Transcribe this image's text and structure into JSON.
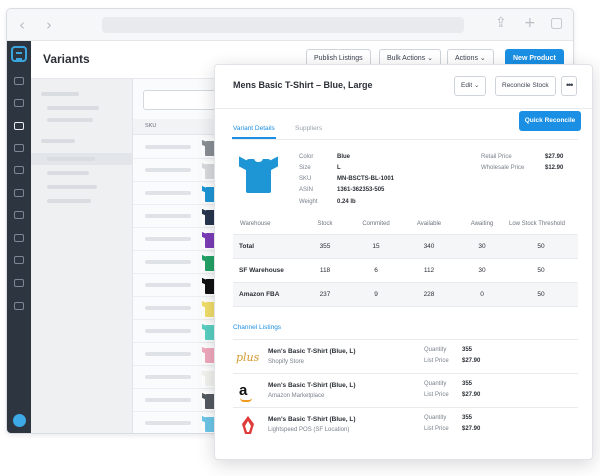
{
  "browser": {
    "back_icon": "chevron-left-icon",
    "forward_icon": "chevron-right-icon",
    "share_icon": "share-icon",
    "new_tab_icon": "plus-icon",
    "tabs_icon": "tabs-icon"
  },
  "colors": {
    "sidebar": "#2d3540",
    "accent": "#1a8fe3",
    "shirt_colors": [
      "#8a8f96",
      "#d8dadd",
      "#1e96d6",
      "#27364f",
      "#7c3db8",
      "#23a367",
      "#111111",
      "#f1de6b",
      "#58d0c2",
      "#f0a9bd",
      "#f2f2ee",
      "#545a61",
      "#6dc6e8"
    ]
  },
  "header": {
    "title": "Variants",
    "publish_listings": "Publish Listings",
    "bulk_actions": "Bulk Actions",
    "actions": "Actions",
    "new_product": "New Product"
  },
  "list": {
    "column_sku": "SKU"
  },
  "detail": {
    "title": "Mens Basic T-Shirt – Blue, Large",
    "edit": "Edit",
    "reconcile_stock": "Reconcile Stock",
    "more": "•••",
    "quick_reconcile": "Quick Reconcile",
    "tabs": [
      "Variant Details",
      "Suppliers"
    ],
    "attributes": [
      {
        "label": "Color",
        "value": "Blue"
      },
      {
        "label": "Size",
        "value": "L"
      },
      {
        "label": "SKU",
        "value": "MN-BSCTS-BL-1001"
      },
      {
        "label": "ASIN",
        "value": "1361-362353-505"
      },
      {
        "label": "Weight",
        "value": "0.24 lb"
      }
    ],
    "prices": [
      {
        "label": "Retail Price",
        "value": "$27.90"
      },
      {
        "label": "Wholesale Price",
        "value": "$12.90"
      }
    ],
    "stock_headers": [
      "Warehouse",
      "Stock",
      "Commited",
      "Available",
      "Awaiting",
      "Low Stock Threshold"
    ],
    "stock_rows": [
      {
        "warehouse": "Total",
        "stock": "355",
        "commited": "15",
        "available": "340",
        "awaiting": "30",
        "threshold": "50"
      },
      {
        "warehouse": "SF Warehouse",
        "stock": "118",
        "commited": "6",
        "available": "112",
        "awaiting": "30",
        "threshold": "50"
      },
      {
        "warehouse": "Amazon FBA",
        "stock": "237",
        "commited": "9",
        "available": "228",
        "awaiting": "0",
        "threshold": "50"
      }
    ],
    "channel_title": "Channel Listings",
    "channels": [
      {
        "name": "Men's Basic T-Shirt (Blue, L)",
        "store": "Shopify Store",
        "logo": "plus",
        "quantity_label": "Quantity",
        "quantity": "355",
        "price_label": "List Price",
        "price": "$27.90"
      },
      {
        "name": "Men's Basic T-Shirt (Blue, L)",
        "store": "Amazon Marketplace",
        "logo": "a",
        "quantity_label": "Quantity",
        "quantity": "355",
        "price_label": "List Price",
        "price": "$27.90"
      },
      {
        "name": "Men's Basic T-Shirt (Blue, L)",
        "store": "Lightspeed POS (SF Location)",
        "logo": "lightspeed-flame",
        "quantity_label": "Quantity",
        "quantity": "355",
        "price_label": "List Price",
        "price": "$27.90"
      }
    ]
  }
}
